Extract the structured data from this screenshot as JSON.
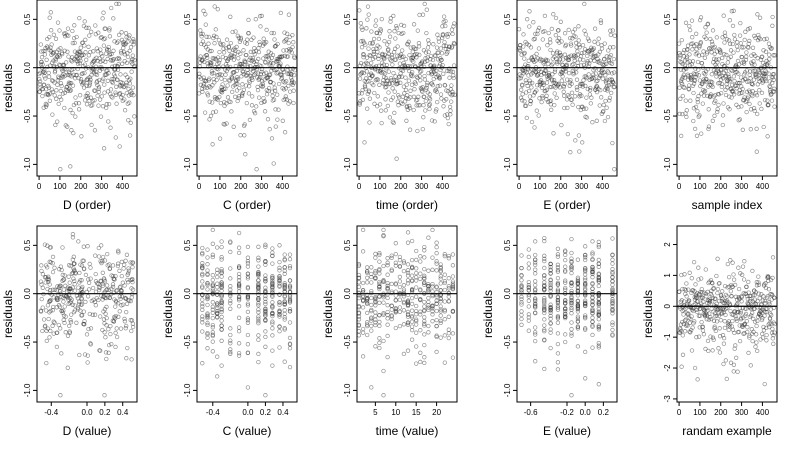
{
  "figure": {
    "background": "#ffffff",
    "point_color": "#333333",
    "line_color": "#000000"
  },
  "chart_data": [
    {
      "type": "scatter",
      "xlabel": "D (order)",
      "ylabel": "residuals",
      "xlim": [
        -10,
        470
      ],
      "ylim": [
        -1.12,
        0.7
      ],
      "xticks": [
        0,
        100,
        200,
        300,
        400
      ],
      "xtick_labels": [
        "0",
        "100",
        "200",
        "300",
        "400"
      ],
      "yticks": [
        -1.0,
        -0.5,
        0.0,
        0.5
      ],
      "ytick_labels": [
        "-1.0",
        "-0.5",
        "0.0",
        "0.5"
      ],
      "reference_line": {
        "y": 0
      },
      "x_kind": "index",
      "n": 460,
      "seed": 11,
      "grid": false,
      "legend": "none"
    },
    {
      "type": "scatter",
      "xlabel": "C (order)",
      "ylabel": "residuals",
      "xlim": [
        -10,
        470
      ],
      "ylim": [
        -1.12,
        0.7
      ],
      "xticks": [
        0,
        100,
        200,
        300,
        400
      ],
      "xtick_labels": [
        "0",
        "100",
        "200",
        "300",
        "400"
      ],
      "yticks": [
        -1.0,
        -0.5,
        0.0,
        0.5
      ],
      "ytick_labels": [
        "-1.0",
        "-0.5",
        "0.0",
        "0.5"
      ],
      "reference_line": {
        "y": 0
      },
      "x_kind": "index",
      "n": 460,
      "seed": 23,
      "grid": false,
      "legend": "none"
    },
    {
      "type": "scatter",
      "xlabel": "time (order)",
      "ylabel": "residuals",
      "xlim": [
        -10,
        470
      ],
      "ylim": [
        -1.12,
        0.7
      ],
      "xticks": [
        0,
        100,
        200,
        300,
        400
      ],
      "xtick_labels": [
        "0",
        "100",
        "200",
        "300",
        "400"
      ],
      "yticks": [
        -1.0,
        -0.5,
        0.0,
        0.5
      ],
      "ytick_labels": [
        "-1.0",
        "-0.5",
        "0.0",
        "0.5"
      ],
      "reference_line": {
        "y": 0
      },
      "x_kind": "index",
      "n": 460,
      "seed": 37,
      "grid": false,
      "legend": "none"
    },
    {
      "type": "scatter",
      "xlabel": "E (order)",
      "ylabel": "residuals",
      "xlim": [
        -10,
        470
      ],
      "ylim": [
        -1.12,
        0.7
      ],
      "xticks": [
        0,
        100,
        200,
        300,
        400
      ],
      "xtick_labels": [
        "0",
        "100",
        "200",
        "300",
        "400"
      ],
      "yticks": [
        -1.0,
        -0.5,
        0.0,
        0.5
      ],
      "ytick_labels": [
        "-1.0",
        "-0.5",
        "0.0",
        "0.5"
      ],
      "reference_line": {
        "y": 0
      },
      "x_kind": "index",
      "n": 460,
      "seed": 41,
      "grid": false,
      "legend": "none"
    },
    {
      "type": "scatter",
      "xlabel": "sample index",
      "ylabel": "residuals",
      "xlim": [
        -10,
        470
      ],
      "ylim": [
        -1.12,
        0.7
      ],
      "xticks": [
        0,
        100,
        200,
        300,
        400
      ],
      "xtick_labels": [
        "0",
        "100",
        "200",
        "300",
        "400"
      ],
      "yticks": [
        -1.0,
        -0.5,
        0.0,
        0.5
      ],
      "ytick_labels": [
        "-1.0",
        "-0.5",
        "0.0",
        "0.5"
      ],
      "reference_line": {
        "y": 0
      },
      "x_kind": "index",
      "n": 460,
      "seed": 53,
      "grid": false,
      "legend": "none"
    },
    {
      "type": "scatter",
      "xlabel": "D (value)",
      "ylabel": "residuals",
      "xlim": [
        -0.56,
        0.56
      ],
      "ylim": [
        -1.12,
        0.7
      ],
      "xticks": [
        -0.4,
        0.0,
        0.2,
        0.4
      ],
      "xtick_labels": [
        "-0.4",
        "0.0",
        "0.2",
        "0.4"
      ],
      "yticks": [
        -1.0,
        -0.5,
        0.0,
        0.5
      ],
      "ytick_labels": [
        "-1.0",
        "-0.5",
        "0.0",
        "0.5"
      ],
      "reference_line": {
        "y": 0
      },
      "x_kind": "continuous",
      "x_range": [
        -0.52,
        0.52
      ],
      "n": 400,
      "seed": 61,
      "grid": false,
      "legend": "none"
    },
    {
      "type": "scatter",
      "xlabel": "C (value)",
      "ylabel": "residuals",
      "xlim": [
        -0.58,
        0.56
      ],
      "ylim": [
        -1.12,
        0.7
      ],
      "xticks": [
        -0.4,
        0.0,
        0.2,
        0.4
      ],
      "xtick_labels": [
        "-0.4",
        "0.0",
        "0.2",
        "0.4"
      ],
      "yticks": [
        -1.0,
        -0.5,
        0.0,
        0.5
      ],
      "ytick_labels": [
        "-1.0",
        "-0.5",
        "0.0",
        "0.5"
      ],
      "reference_line": {
        "y": 0
      },
      "x_kind": "discrete",
      "x_levels": [
        -0.52,
        -0.46,
        -0.4,
        -0.35,
        -0.3,
        -0.2,
        -0.1,
        0.0,
        0.12,
        0.2,
        0.28,
        0.36,
        0.42,
        0.48
      ],
      "n": 400,
      "seed": 71,
      "grid": false,
      "legend": "none"
    },
    {
      "type": "scatter",
      "xlabel": "time (value)",
      "ylabel": "residuals",
      "xlim": [
        0.5,
        25
      ],
      "ylim": [
        -1.12,
        0.7
      ],
      "xticks": [
        5,
        10,
        15,
        20
      ],
      "xtick_labels": [
        "5",
        "10",
        "15",
        "20"
      ],
      "yticks": [
        -1.0,
        -0.5,
        0.0,
        0.5
      ],
      "ytick_labels": [
        "-1.0",
        "-0.5",
        "0.0",
        "0.5"
      ],
      "reference_line": {
        "y": 0
      },
      "x_kind": "discrete",
      "x_levels": [
        1,
        2,
        3,
        4,
        5,
        6,
        7,
        8,
        9,
        10,
        11,
        12,
        13,
        14,
        15,
        16,
        17,
        18,
        19,
        20,
        21,
        22,
        23,
        24
      ],
      "n": 420,
      "seed": 83,
      "grid": false,
      "legend": "none"
    },
    {
      "type": "scatter",
      "xlabel": "E (value)",
      "ylabel": "residuals",
      "xlim": [
        -0.75,
        0.35
      ],
      "ylim": [
        -1.12,
        0.7
      ],
      "xticks": [
        -0.6,
        -0.2,
        0.0,
        0.2
      ],
      "xtick_labels": [
        "-0.6",
        "-0.2",
        "0.0",
        "0.2"
      ],
      "yticks": [
        -1.0,
        -0.5,
        0.0,
        0.5
      ],
      "ytick_labels": [
        "-1.0",
        "-0.5",
        "0.0",
        "0.5"
      ],
      "reference_line": {
        "y": 0
      },
      "x_kind": "discrete",
      "x_levels": [
        -0.7,
        -0.62,
        -0.55,
        -0.45,
        -0.38,
        -0.3,
        -0.22,
        -0.15,
        -0.08,
        0.0,
        0.08,
        0.15,
        0.3
      ],
      "n": 420,
      "seed": 97,
      "grid": false,
      "legend": "none"
    },
    {
      "type": "scatter",
      "xlabel": "randam example",
      "ylabel": "residuals",
      "xlim": [
        -10,
        470
      ],
      "ylim": [
        -3.1,
        2.6
      ],
      "xticks": [
        0,
        100,
        200,
        300,
        400
      ],
      "xtick_labels": [
        "0",
        "100",
        "200",
        "300",
        "400"
      ],
      "yticks": [
        -3,
        -2,
        -1,
        0,
        1,
        2
      ],
      "ytick_labels": [
        "-3",
        "-2",
        "-1",
        "0",
        "1",
        "2"
      ],
      "reference_line": {
        "y": 0
      },
      "x_kind": "index",
      "n": 460,
      "seed": 109,
      "y_scale": 2.4,
      "grid": false,
      "legend": "none"
    }
  ]
}
